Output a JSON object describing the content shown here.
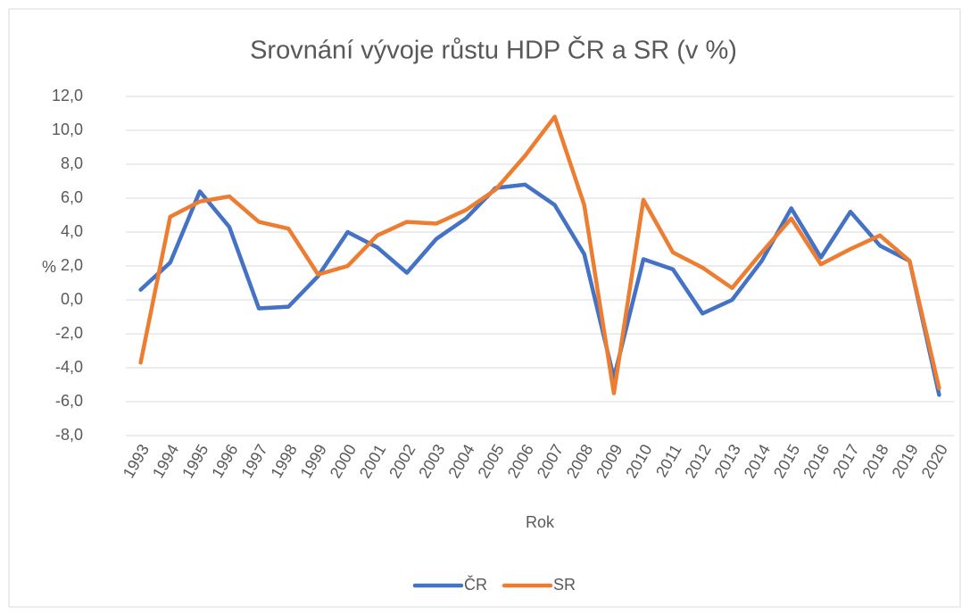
{
  "chart_data": {
    "type": "line",
    "title": "Srovnání vývoje růstu HDP ČR a SR (v %)",
    "x_label": "Rok",
    "y_label": "%",
    "categories": [
      "1993",
      "1994",
      "1995",
      "1996",
      "1997",
      "1998",
      "1999",
      "2000",
      "2001",
      "2002",
      "2003",
      "2004",
      "2005",
      "2006",
      "2007",
      "2008",
      "2009",
      "2010",
      "2011",
      "2012",
      "2013",
      "2014",
      "2015",
      "2016",
      "2017",
      "2018",
      "2019",
      "2020"
    ],
    "series": [
      {
        "name": "ČR",
        "color": "#4472c4",
        "values": [
          0.6,
          2.2,
          6.4,
          4.3,
          -0.5,
          -0.4,
          1.4,
          4.0,
          3.1,
          1.6,
          3.6,
          4.8,
          6.6,
          6.8,
          5.6,
          2.7,
          -4.6,
          2.4,
          1.8,
          -0.8,
          0.0,
          2.3,
          5.4,
          2.5,
          5.2,
          3.2,
          2.3,
          -5.6
        ]
      },
      {
        "name": "SR",
        "color": "#ed7d31",
        "values": [
          -3.7,
          4.9,
          5.8,
          6.1,
          4.6,
          4.2,
          1.5,
          2.0,
          3.8,
          4.6,
          4.5,
          5.3,
          6.5,
          8.5,
          10.8,
          5.6,
          -5.5,
          5.9,
          2.8,
          1.9,
          0.7,
          2.8,
          4.8,
          2.1,
          3.0,
          3.8,
          2.3,
          -5.2
        ]
      }
    ],
    "ylim": [
      -8,
      12
    ],
    "yticks": [
      {
        "value": -8,
        "label": "-8,0"
      },
      {
        "value": -6,
        "label": "-6,0"
      },
      {
        "value": -4,
        "label": "-4,0"
      },
      {
        "value": -2,
        "label": "-2,0"
      },
      {
        "value": 0,
        "label": "0,0"
      },
      {
        "value": 2,
        "label": "2,0"
      },
      {
        "value": 4,
        "label": "4,0"
      },
      {
        "value": 6,
        "label": "6,0"
      },
      {
        "value": 8,
        "label": "8,0"
      },
      {
        "value": 10,
        "label": "10,0"
      },
      {
        "value": 12,
        "label": "12,0"
      }
    ],
    "grid": true,
    "legend": "bottom"
  }
}
